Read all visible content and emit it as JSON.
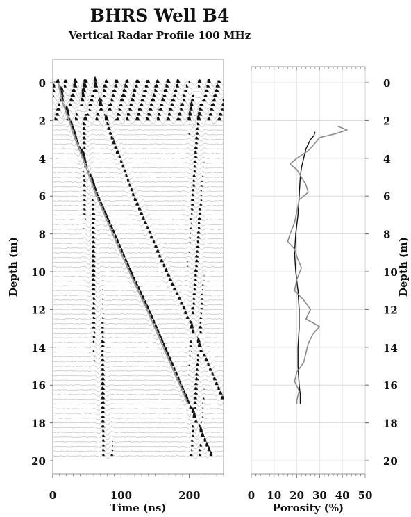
{
  "title": "BHRS Well B4",
  "subtitle": "Vertical Radar Profile 100 MHz",
  "chart_data": [
    {
      "type": "wiggle",
      "xlabel": "Time (ns)",
      "ylabel": "Depth (m)",
      "xlim": [
        0,
        250
      ],
      "ylim": [
        0,
        20
      ],
      "y_inverted": true,
      "x_ticks": [
        0,
        100,
        200
      ],
      "y_ticks": [
        0,
        2,
        4,
        6,
        8,
        10,
        12,
        14,
        16,
        18,
        20
      ],
      "first_break_pick": {
        "depth": [
          0,
          1,
          2,
          3,
          4,
          6,
          8,
          10,
          12,
          14,
          16,
          17
        ],
        "time": [
          8,
          14,
          24,
          33,
          44,
          64,
          88,
          112,
          138,
          162,
          186,
          198
        ]
      },
      "trace_depth_range": [
        0,
        19.8
      ],
      "trace_spacing": 0.25
    },
    {
      "type": "line",
      "xlabel": "Porosity (%)",
      "ylabel": "Depth (m)",
      "xlim": [
        0,
        50
      ],
      "ylim": [
        0,
        20
      ],
      "y_inverted": true,
      "x_ticks": [
        0,
        10,
        20,
        30,
        40,
        50
      ],
      "y_ticks": [
        0,
        2,
        4,
        6,
        8,
        10,
        12,
        14,
        16,
        18,
        20
      ],
      "series": [
        {
          "color": "#111111",
          "depth": [
            2.6,
            2.8,
            3.0,
            3.5,
            4.0,
            4.5,
            5.0,
            6.0,
            7.0,
            8.0,
            9.0,
            10.0,
            11.0,
            12.0,
            13.0,
            14.0,
            15.0,
            16.0,
            16.5,
            17.0
          ],
          "porosity": [
            28,
            27.5,
            26,
            24,
            23,
            22,
            21.5,
            21,
            20.5,
            19.5,
            19,
            19.5,
            20.5,
            21,
            21,
            20.5,
            20.5,
            21,
            21.5,
            21.5
          ]
        },
        {
          "color": "#8a8a8a",
          "depth": [
            2.3,
            2.5,
            2.7,
            2.9,
            3.2,
            3.6,
            4.0,
            4.3,
            4.6,
            5.0,
            5.4,
            5.8,
            6.2,
            6.8,
            7.4,
            8.0,
            8.4,
            8.8,
            9.2,
            9.8,
            10.4,
            11.0,
            11.5,
            12.0,
            12.5,
            12.9,
            13.3,
            13.8,
            14.3,
            14.8,
            15.3,
            15.8,
            16.3,
            16.8,
            17.0
          ],
          "porosity": [
            38,
            42,
            37,
            30,
            28,
            25,
            20,
            17,
            20,
            22,
            24,
            25,
            21,
            20,
            19,
            17,
            16,
            19,
            20,
            22,
            20,
            19,
            23,
            26,
            24,
            30,
            27,
            25,
            24,
            23,
            20,
            19,
            21,
            20,
            20
          ]
        }
      ]
    }
  ]
}
